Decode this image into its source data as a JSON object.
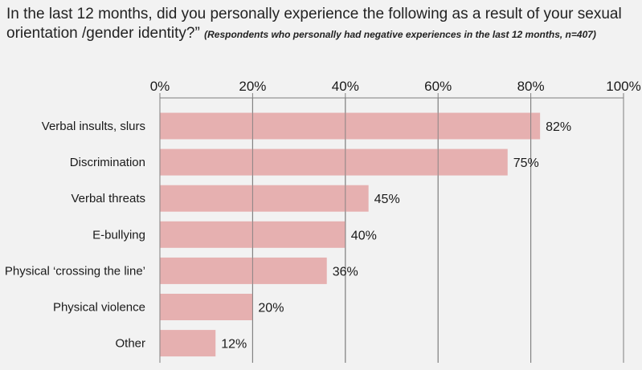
{
  "title": "In the last 12 months, did you personally experience the following as a result of your sexual orientation /gender identity?”",
  "note": "(Respondents who personally had negative experiences in the last 12 months, n=407)",
  "colors": {
    "bar": "#e6b0b0",
    "grid": "#7f7f7f",
    "background": "#f2f2f2"
  },
  "chart_data": {
    "type": "bar",
    "orientation": "horizontal",
    "categories": [
      "Verbal insults, slurs",
      "Discrimination",
      "Verbal threats",
      "E-bullying",
      "Physical ‘crossing the line’",
      "Physical violence",
      "Other"
    ],
    "values": [
      82,
      75,
      45,
      40,
      36,
      20,
      12
    ],
    "value_labels": [
      "82%",
      "75%",
      "45%",
      "40%",
      "36%",
      "20%",
      "12%"
    ],
    "ticks": [
      0,
      20,
      40,
      60,
      80,
      100
    ],
    "tick_labels": [
      "0%",
      "20%",
      "40%",
      "60%",
      "80%",
      "100%"
    ],
    "xlim": [
      0,
      100
    ],
    "axis_position": "top",
    "grid": true
  }
}
